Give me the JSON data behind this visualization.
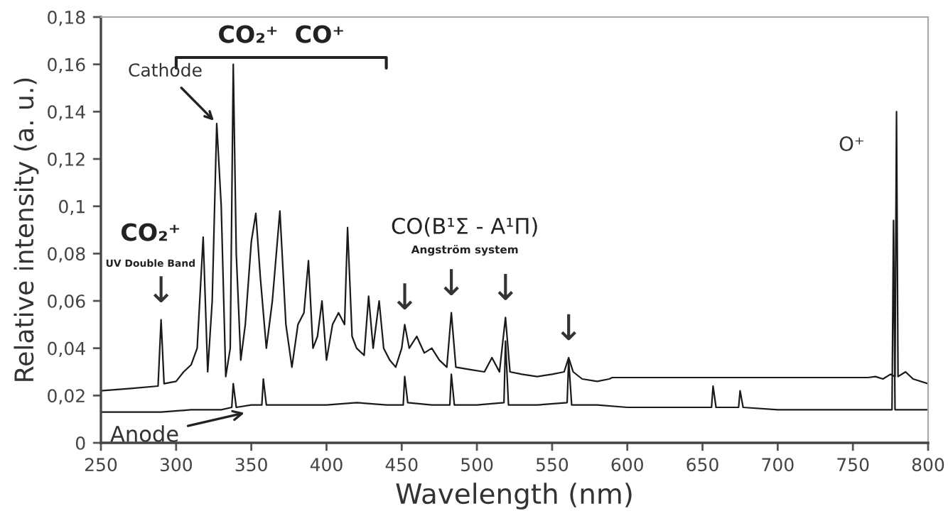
{
  "chart_data": {
    "type": "line",
    "xlabel": "Wavelength (nm)",
    "ylabel": "Relative intensity (a. u.)",
    "xlim": [
      250,
      800
    ],
    "xticks": [
      250,
      300,
      350,
      400,
      450,
      500,
      550,
      600,
      650,
      700,
      750,
      800
    ],
    "ylim": [
      0,
      0.18
    ],
    "yticks": [
      0,
      {
        "value": 0.02,
        "label": "0,02"
      },
      {
        "value": 0.04,
        "label": "0,04"
      },
      {
        "value": 0.06,
        "label": "0,06"
      },
      {
        "value": 0.08,
        "label": "0,08"
      },
      {
        "value": 0.1,
        "label": "0,1"
      },
      {
        "value": 0.12,
        "label": "0,12"
      },
      {
        "value": 0.14,
        "label": "0,14"
      },
      {
        "value": 0.16,
        "label": "0,16"
      },
      {
        "value": 0.18,
        "label": "0,18"
      }
    ],
    "grid": false,
    "legend": false,
    "marker": "none",
    "line_style": "solid",
    "series": [
      {
        "color": "#1a1a1a",
        "x": [
          250,
          270,
          288,
          290,
          292,
          300,
          305,
          310,
          314,
          318,
          321,
          324,
          327,
          330,
          333,
          336,
          338,
          340,
          343,
          346,
          350,
          353,
          356,
          360,
          364,
          369,
          373,
          377,
          381,
          385,
          388,
          391,
          394,
          397,
          400,
          404,
          408,
          412,
          414,
          417,
          420,
          425,
          428,
          431,
          435,
          438,
          442,
          446,
          450,
          452,
          455,
          460,
          465,
          470,
          475,
          480,
          483,
          486,
          495,
          505,
          510,
          515,
          519,
          522,
          530,
          540,
          550,
          558,
          561,
          564,
          570,
          580,
          588,
          590,
          760,
          765,
          770,
          775,
          778,
          779,
          780,
          785,
          790,
          800
        ],
        "values": [
          0.022,
          0.023,
          0.024,
          0.052,
          0.025,
          0.026,
          0.03,
          0.033,
          0.04,
          0.087,
          0.03,
          0.06,
          0.135,
          0.1,
          0.028,
          0.04,
          0.16,
          0.08,
          0.035,
          0.05,
          0.085,
          0.097,
          0.07,
          0.04,
          0.06,
          0.098,
          0.05,
          0.032,
          0.05,
          0.055,
          0.077,
          0.04,
          0.045,
          0.06,
          0.035,
          0.05,
          0.055,
          0.05,
          0.091,
          0.045,
          0.04,
          0.037,
          0.062,
          0.04,
          0.06,
          0.04,
          0.035,
          0.032,
          0.04,
          0.05,
          0.04,
          0.045,
          0.038,
          0.04,
          0.035,
          0.032,
          0.055,
          0.032,
          0.031,
          0.03,
          0.036,
          0.03,
          0.053,
          0.03,
          0.029,
          0.028,
          0.029,
          0.03,
          0.036,
          0.03,
          0.027,
          0.026,
          0.027,
          0.0276,
          0.0276,
          0.028,
          0.027,
          0.029,
          0.028,
          0.14,
          0.028,
          0.03,
          0.027,
          0.025
        ]
      },
      {
        "color": "#1a1a1a",
        "x": [
          250,
          270,
          290,
          310,
          330,
          337,
          338,
          340,
          350,
          357,
          358,
          360,
          380,
          400,
          420,
          440,
          451,
          452,
          454,
          470,
          482,
          483,
          485,
          500,
          518,
          519,
          521,
          540,
          560,
          561,
          563,
          580,
          600,
          620,
          640,
          656,
          657,
          659,
          674,
          675,
          677,
          700,
          720,
          740,
          760,
          776,
          777,
          778,
          800
        ],
        "values": [
          0.013,
          0.013,
          0.013,
          0.014,
          0.014,
          0.015,
          0.025,
          0.015,
          0.016,
          0.016,
          0.027,
          0.016,
          0.016,
          0.016,
          0.017,
          0.016,
          0.016,
          0.028,
          0.017,
          0.016,
          0.016,
          0.029,
          0.016,
          0.016,
          0.017,
          0.043,
          0.016,
          0.016,
          0.017,
          0.035,
          0.016,
          0.016,
          0.015,
          0.015,
          0.015,
          0.015,
          0.024,
          0.015,
          0.015,
          0.022,
          0.015,
          0.014,
          0.014,
          0.014,
          0.014,
          0.014,
          0.094,
          0.014,
          0.014
        ]
      }
    ],
    "annotations": [
      "CO₂⁺  CO⁺",
      {
        "text": "Cathode",
        "x": 327,
        "y": 0.135
      },
      "CO₂⁺",
      "UV Double Band",
      {
        "text": "↓",
        "x": 290,
        "y": 0.053
      },
      "CO(B¹Σ - A¹Π)",
      "Angström system",
      {
        "text": "↓",
        "x": 452,
        "y": 0.05
      },
      {
        "text": "↓",
        "x": 483,
        "y": 0.056
      },
      {
        "text": "↓",
        "x": 519,
        "y": 0.054
      },
      {
        "text": "↓",
        "x": 561,
        "y": 0.037
      },
      {
        "text": "O⁺",
        "x": 778,
        "y": 0.14
      },
      {
        "text": "Anode",
        "x": 348,
        "y": 0.013
      }
    ]
  }
}
